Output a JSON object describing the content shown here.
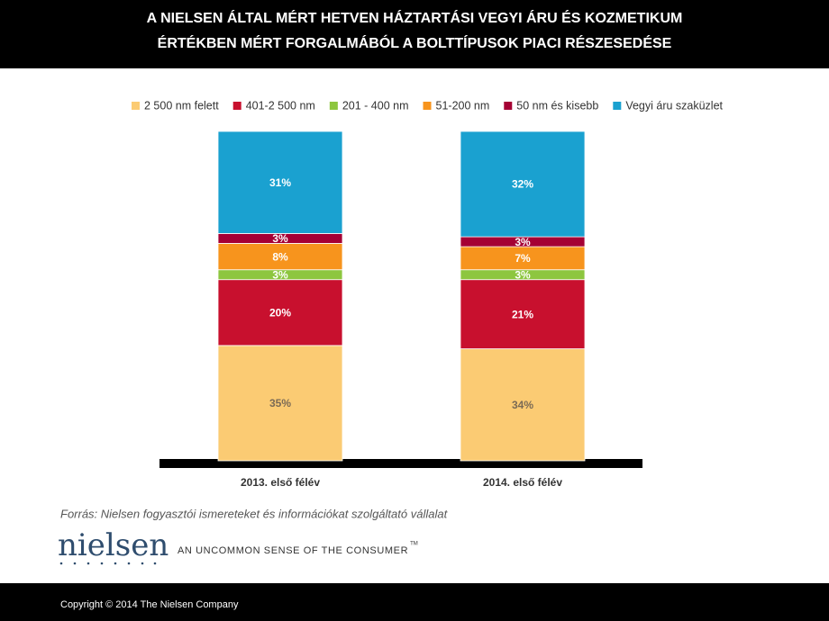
{
  "chart_data": {
    "type": "stacked_bar",
    "title": [
      "A NIELSEN ÁLTAL MÉRT HETVEN HÁZTARTÁSI VEGYI ÁRU ÉS KOZMETIKUM",
      "ÉRTÉKBEN MÉRT FORGALMÁBÓL A BOLTTÍPUSOK PIACI RÉSZESEDÉSE"
    ],
    "categories": [
      "2013. első félév",
      "2014. első félév"
    ],
    "series": [
      {
        "name": "2 500 nm felett",
        "color": "#fbcb73",
        "values": [
          35,
          34
        ],
        "value_labels": [
          "35%",
          "34%"
        ]
      },
      {
        "name": "401-2 500 nm",
        "color": "#c8102e",
        "values": [
          20,
          21
        ],
        "value_labels": [
          "20%",
          "21%"
        ]
      },
      {
        "name": "201 - 400 nm",
        "color": "#8dc63f",
        "values": [
          3,
          3
        ],
        "value_labels": [
          "3%",
          "3%"
        ]
      },
      {
        "name": "51-200 nm",
        "color": "#f7941d",
        "values": [
          8,
          7
        ],
        "value_labels": [
          "8%",
          "7%"
        ]
      },
      {
        "name": "50 nm és kisebb",
        "color": "#a50034",
        "values": [
          3,
          3
        ],
        "value_labels": [
          "3%",
          "3%"
        ]
      },
      {
        "name": "Vegyi áru szaküzlet",
        "color": "#1aa1d0",
        "values": [
          31,
          32
        ],
        "value_labels": [
          "31%",
          "32%"
        ]
      }
    ],
    "legend": "top"
  },
  "source": "Forrás: Nielsen fogyasztói ismereteket és információkat szolgáltató vállalat",
  "logo": "nielsen",
  "tagline": "AN UNCOMMON SENSE OF THE CONSUMER",
  "trademark": "TM",
  "copyright": "Copyright © 2014  The Nielsen Company"
}
